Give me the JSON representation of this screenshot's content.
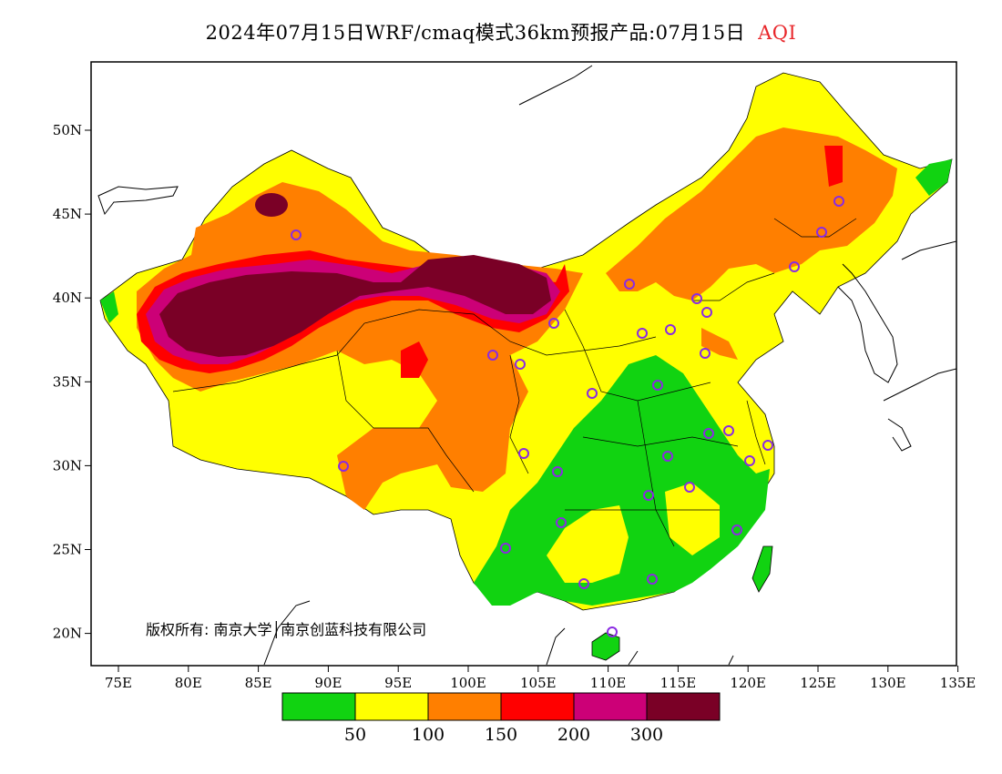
{
  "title": {
    "main": "2024年07月15日WRF/cmaq模式36km预报产品:07月15日",
    "variable": "AQI",
    "variable_color": "#e8262a"
  },
  "axes": {
    "x_ticks": [
      "75E",
      "80E",
      "85E",
      "90E",
      "95E",
      "100E",
      "105E",
      "110E",
      "115E",
      "120E",
      "125E",
      "130E",
      "135E"
    ],
    "y_ticks": [
      "50N",
      "45N",
      "40N",
      "35N",
      "30N",
      "25N",
      "20N"
    ]
  },
  "copyright": "版权所有: 南京大学│南京创蓝科技有限公司",
  "legend": {
    "colors": [
      "#11d311",
      "#ffff00",
      "#ff7f00",
      "#ff0000",
      "#cc0077",
      "#7a0026"
    ],
    "labels": [
      "50",
      "100",
      "150",
      "200",
      "300"
    ]
  },
  "level_colors": {
    "good": "#11d311",
    "moderate": "#ffff00",
    "usg": "#ff7f00",
    "unhealthy": "#ff0000",
    "very_unhealthy": "#cc0077",
    "hazardous": "#7a0026"
  },
  "stations_marker_color": "#8a2be2"
}
